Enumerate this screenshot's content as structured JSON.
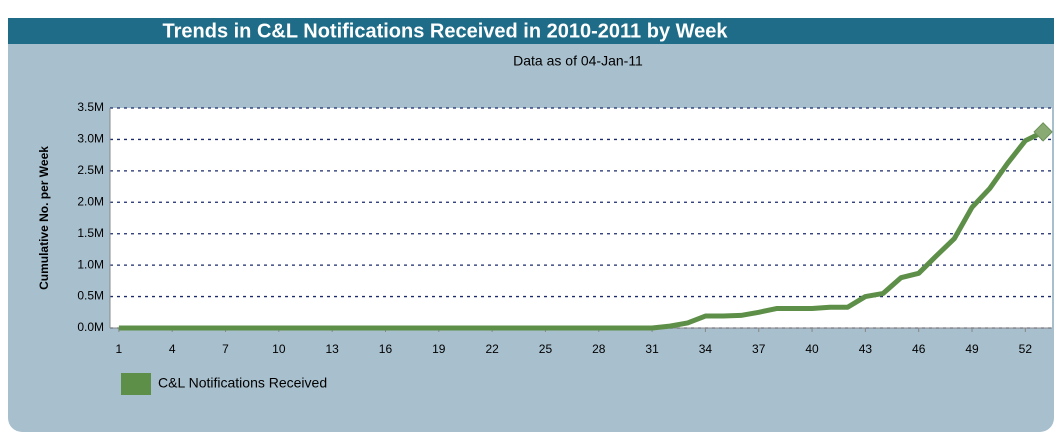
{
  "chart_data": {
    "type": "line",
    "title": "Trends in C&L Notifications Received in 2010-2011 by Week",
    "subtitle": "Data as of 04-Jan-11",
    "y_label": "Cumulative No. per Week",
    "x": [
      1,
      2,
      3,
      4,
      5,
      6,
      7,
      8,
      9,
      10,
      11,
      12,
      13,
      14,
      15,
      16,
      17,
      18,
      19,
      20,
      21,
      22,
      23,
      24,
      25,
      26,
      27,
      28,
      29,
      30,
      31,
      32,
      33,
      34,
      35,
      36,
      37,
      38,
      39,
      40,
      41,
      42,
      43,
      44,
      45,
      46,
      47,
      48,
      49,
      50,
      51,
      52,
      53
    ],
    "xlim": [
      0.5,
      53.5
    ],
    "xticks": [
      1,
      4,
      7,
      10,
      13,
      16,
      19,
      22,
      25,
      28,
      31,
      34,
      37,
      40,
      43,
      46,
      49,
      52
    ],
    "ylim": [
      0,
      3500000
    ],
    "yticks": [
      {
        "value": 0,
        "label": "0.0M"
      },
      {
        "value": 500000,
        "label": "0.5M"
      },
      {
        "value": 1000000,
        "label": "1.0M"
      },
      {
        "value": 1500000,
        "label": "1.5M"
      },
      {
        "value": 2000000,
        "label": "2.0M"
      },
      {
        "value": 2500000,
        "label": "2.5M"
      },
      {
        "value": 3000000,
        "label": "3.0M"
      },
      {
        "value": 3500000,
        "label": "3.5M"
      }
    ],
    "grid": true,
    "legend": "bottom-left",
    "series": [
      {
        "name": "C&L Notifications Received",
        "color": "#5e8f48",
        "values": [
          0,
          0,
          0,
          0,
          0,
          0,
          0,
          0,
          0,
          0,
          0,
          0,
          0,
          0,
          0,
          0,
          0,
          0,
          0,
          0,
          0,
          0,
          0,
          0,
          0,
          0,
          0,
          0,
          0,
          0,
          0,
          30000,
          80000,
          190000,
          190000,
          200000,
          250000,
          310000,
          310000,
          310000,
          330000,
          330000,
          500000,
          550000,
          800000,
          870000,
          1150000,
          1420000,
          1920000,
          2220000,
          2620000,
          2980000,
          3120000
        ]
      }
    ]
  }
}
